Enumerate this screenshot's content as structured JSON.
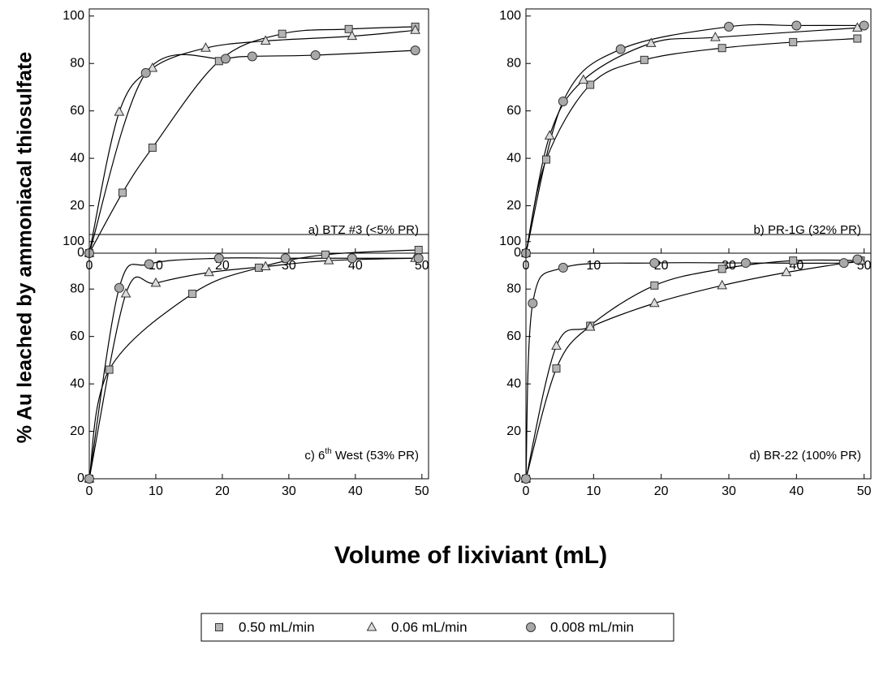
{
  "ylabel": "% Au leached by ammoniacal thiosulfate",
  "xlabel": "Volume of lixiviant (mL)",
  "chart_data": [
    {
      "type": "scatter",
      "annotation": [
        {
          "text": "a) BTZ #3 (<5% PR)"
        }
      ],
      "xlim": [
        0,
        51
      ],
      "ylim": [
        0,
        103
      ],
      "xticks": [
        0,
        10,
        20,
        30,
        40,
        50
      ],
      "yticks": [
        0,
        20,
        40,
        60,
        80,
        100
      ],
      "series": [
        {
          "name": "0.50 mL/min",
          "marker": "square",
          "color": "#b4b4b4",
          "x": [
            0,
            5,
            9.5,
            19.5,
            29,
            39,
            49
          ],
          "values": [
            0,
            25.5,
            44.5,
            81,
            92.5,
            94.5,
            95.5
          ]
        },
        {
          "name": "0.06 mL/min",
          "marker": "triangle",
          "color": "#dcdcdc",
          "x": [
            0,
            4.5,
            9.5,
            17.5,
            26.5,
            39.5,
            49
          ],
          "values": [
            0,
            59.5,
            78,
            86.5,
            89.5,
            91.5,
            94
          ]
        },
        {
          "name": "0.008 mL/min",
          "marker": "circle",
          "color": "#a8a8a8",
          "x": [
            0,
            8.5,
            20.5,
            24.5,
            34,
            49
          ],
          "values": [
            0,
            76,
            82,
            83,
            83.5,
            85.5
          ]
        }
      ]
    },
    {
      "type": "scatter",
      "annotation": [
        {
          "text": "b) PR-1G (32% PR)"
        }
      ],
      "xlim": [
        0,
        51
      ],
      "ylim": [
        0,
        103
      ],
      "xticks": [
        0,
        10,
        20,
        30,
        40,
        50
      ],
      "yticks": [
        0,
        20,
        40,
        60,
        80,
        100
      ],
      "series": [
        {
          "name": "0.50 mL/min",
          "marker": "square",
          "color": "#b4b4b4",
          "x": [
            0,
            3,
            9.5,
            17.5,
            29,
            39.5,
            49
          ],
          "values": [
            0,
            39.5,
            71,
            81.5,
            86.5,
            89,
            90.5
          ]
        },
        {
          "name": "0.06 mL/min",
          "marker": "triangle",
          "color": "#dcdcdc",
          "x": [
            0,
            3.5,
            8.5,
            18.5,
            28,
            49
          ],
          "values": [
            0,
            49.5,
            73,
            88.5,
            91,
            95
          ]
        },
        {
          "name": "0.008 mL/min",
          "marker": "circle",
          "color": "#a8a8a8",
          "x": [
            0,
            5.5,
            14,
            30,
            40,
            50
          ],
          "values": [
            0,
            64,
            86,
            95.5,
            96,
            96
          ]
        }
      ]
    },
    {
      "type": "scatter",
      "annotation": [
        {
          "text": "c) 6"
        },
        {
          "text": "th",
          "sup": true
        },
        {
          "text": " West (53% PR)"
        }
      ],
      "xlim": [
        0,
        51
      ],
      "ylim": [
        0,
        103
      ],
      "xticks": [
        0,
        10,
        20,
        30,
        40,
        50
      ],
      "yticks": [
        0,
        20,
        40,
        60,
        80,
        100
      ],
      "series": [
        {
          "name": "0.50 mL/min",
          "marker": "square",
          "color": "#b4b4b4",
          "x": [
            0,
            3,
            15.5,
            25.5,
            35.5,
            49.5
          ],
          "values": [
            0,
            46,
            78,
            89,
            94.5,
            96.5
          ]
        },
        {
          "name": "0.06 mL/min",
          "marker": "triangle",
          "color": "#dcdcdc",
          "x": [
            0,
            5.5,
            10,
            18,
            26.5,
            36,
            49
          ],
          "values": [
            0,
            78,
            82.5,
            87,
            89.5,
            92,
            93
          ]
        },
        {
          "name": "0.008 mL/min",
          "marker": "circle",
          "color": "#a8a8a8",
          "x": [
            0,
            4.5,
            9,
            19.5,
            29.5,
            39.5,
            49.5
          ],
          "values": [
            0,
            80.5,
            90.5,
            93,
            93,
            93,
            93
          ]
        }
      ]
    },
    {
      "type": "scatter",
      "annotation": [
        {
          "text": "d) BR-22 (100% PR)"
        }
      ],
      "xlim": [
        0,
        51
      ],
      "ylim": [
        0,
        103
      ],
      "xticks": [
        0,
        10,
        20,
        30,
        40,
        50
      ],
      "yticks": [
        0,
        20,
        40,
        60,
        80,
        100
      ],
      "series": [
        {
          "name": "0.50 mL/min",
          "marker": "square",
          "color": "#b4b4b4",
          "x": [
            0,
            4.5,
            9.5,
            19,
            29,
            39.5,
            49.5
          ],
          "values": [
            0,
            46.5,
            64.5,
            81.5,
            88.5,
            92,
            92
          ]
        },
        {
          "name": "0.06 mL/min",
          "marker": "triangle",
          "color": "#dcdcdc",
          "x": [
            0,
            4.5,
            9.5,
            19,
            29,
            38.5,
            49.5
          ],
          "values": [
            0,
            56,
            64,
            74,
            81.5,
            87,
            92
          ]
        },
        {
          "name": "0.008 mL/min",
          "marker": "circle",
          "color": "#a8a8a8",
          "x": [
            0,
            1,
            5.5,
            19,
            32.5,
            47,
            49
          ],
          "values": [
            0,
            74,
            89,
            91,
            91,
            91,
            92.5
          ]
        }
      ]
    }
  ]
}
